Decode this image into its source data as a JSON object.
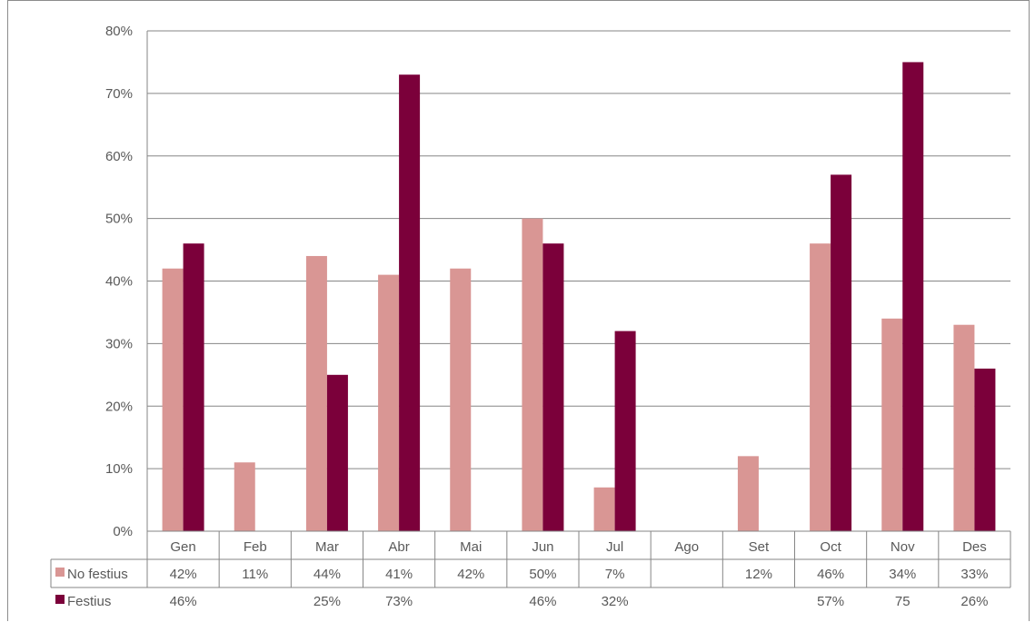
{
  "chart_data": {
    "type": "bar",
    "categories": [
      "Gen",
      "Feb",
      "Mar",
      "Abr",
      "Mai",
      "Jun",
      "Jul",
      "Ago",
      "Set",
      "Oct",
      "Nov",
      "Des"
    ],
    "series": [
      {
        "name": "No festius",
        "color": "#d99694",
        "values": [
          42,
          11,
          44,
          41,
          42,
          50,
          7,
          null,
          12,
          46,
          34,
          33
        ],
        "table_labels": [
          "42%",
          "11%",
          "44%",
          "41%",
          "42%",
          "50%",
          "7%",
          "",
          "12%",
          "46%",
          "34%",
          "33%"
        ]
      },
      {
        "name": "Festius",
        "color": "#7b003a",
        "values": [
          46,
          null,
          25,
          73,
          null,
          46,
          32,
          null,
          null,
          57,
          75,
          26
        ],
        "table_labels": [
          "46%",
          "",
          "25%",
          "73%",
          "",
          "46%",
          "32%",
          "",
          "",
          "57%",
          "75",
          "26%"
        ]
      }
    ],
    "ylim": [
      0,
      80
    ],
    "yticks": [
      "0%",
      "10%",
      "20%",
      "30%",
      "40%",
      "50%",
      "60%",
      "70%",
      "80%"
    ],
    "grid": true,
    "legend": "data-table"
  }
}
